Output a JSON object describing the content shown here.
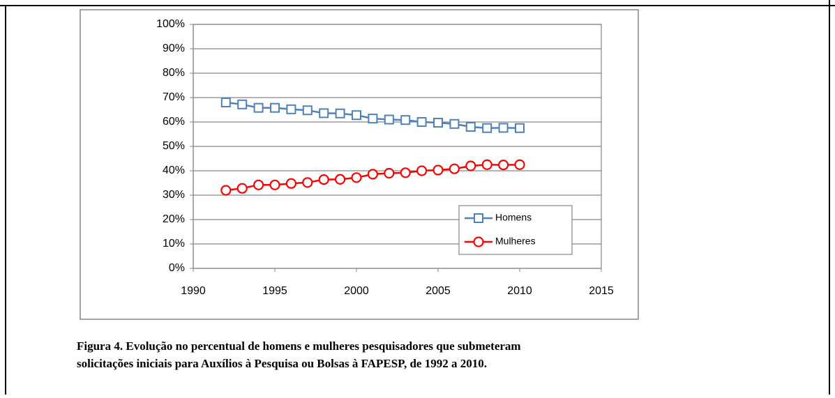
{
  "chart_data": {
    "type": "line",
    "x": [
      1992,
      1993,
      1994,
      1995,
      1996,
      1997,
      1998,
      1999,
      2000,
      2001,
      2002,
      2003,
      2004,
      2005,
      2006,
      2007,
      2008,
      2009,
      2010
    ],
    "series": [
      {
        "name": "Homens",
        "color": "#4f81bd",
        "marker": "square",
        "values": [
          68,
          67.2,
          65.8,
          65.8,
          65.2,
          64.8,
          63.6,
          63.5,
          62.8,
          61.4,
          61,
          60.8,
          60,
          59.7,
          59.2,
          58,
          57.5,
          57.6,
          57.5
        ]
      },
      {
        "name": "Mulheres",
        "color": "#ff0000",
        "marker": "circle",
        "values": [
          32,
          32.8,
          34.2,
          34.2,
          34.8,
          35.2,
          36.4,
          36.5,
          37.2,
          38.6,
          39,
          39.2,
          40,
          40.3,
          40.8,
          42,
          42.5,
          42.4,
          42.5
        ]
      }
    ],
    "xlim": [
      1990,
      2015
    ],
    "xticks": [
      1990,
      1995,
      2000,
      2005,
      2010,
      2015
    ],
    "ylim": [
      0,
      100
    ],
    "yticks": [
      {
        "value": 0,
        "label": "0%"
      },
      {
        "value": 10,
        "label": "10%"
      },
      {
        "value": 20,
        "label": "20%"
      },
      {
        "value": 30,
        "label": "30%"
      },
      {
        "value": 40,
        "label": "40%"
      },
      {
        "value": 50,
        "label": "50%"
      },
      {
        "value": 60,
        "label": "60%"
      },
      {
        "value": 70,
        "label": "70%"
      },
      {
        "value": 80,
        "label": "80%"
      },
      {
        "value": 90,
        "label": "90%"
      },
      {
        "value": 100,
        "label": "100%"
      }
    ],
    "grid": true,
    "legend": "lower-right"
  },
  "caption": [
    "Figura 4. Evolução no percentual de homens e mulheres pesquisadores que submeteram",
    "solicitações iniciais para Auxílios à Pesquisa ou Bolsas à FAPESP, de 1992 a 2010."
  ]
}
